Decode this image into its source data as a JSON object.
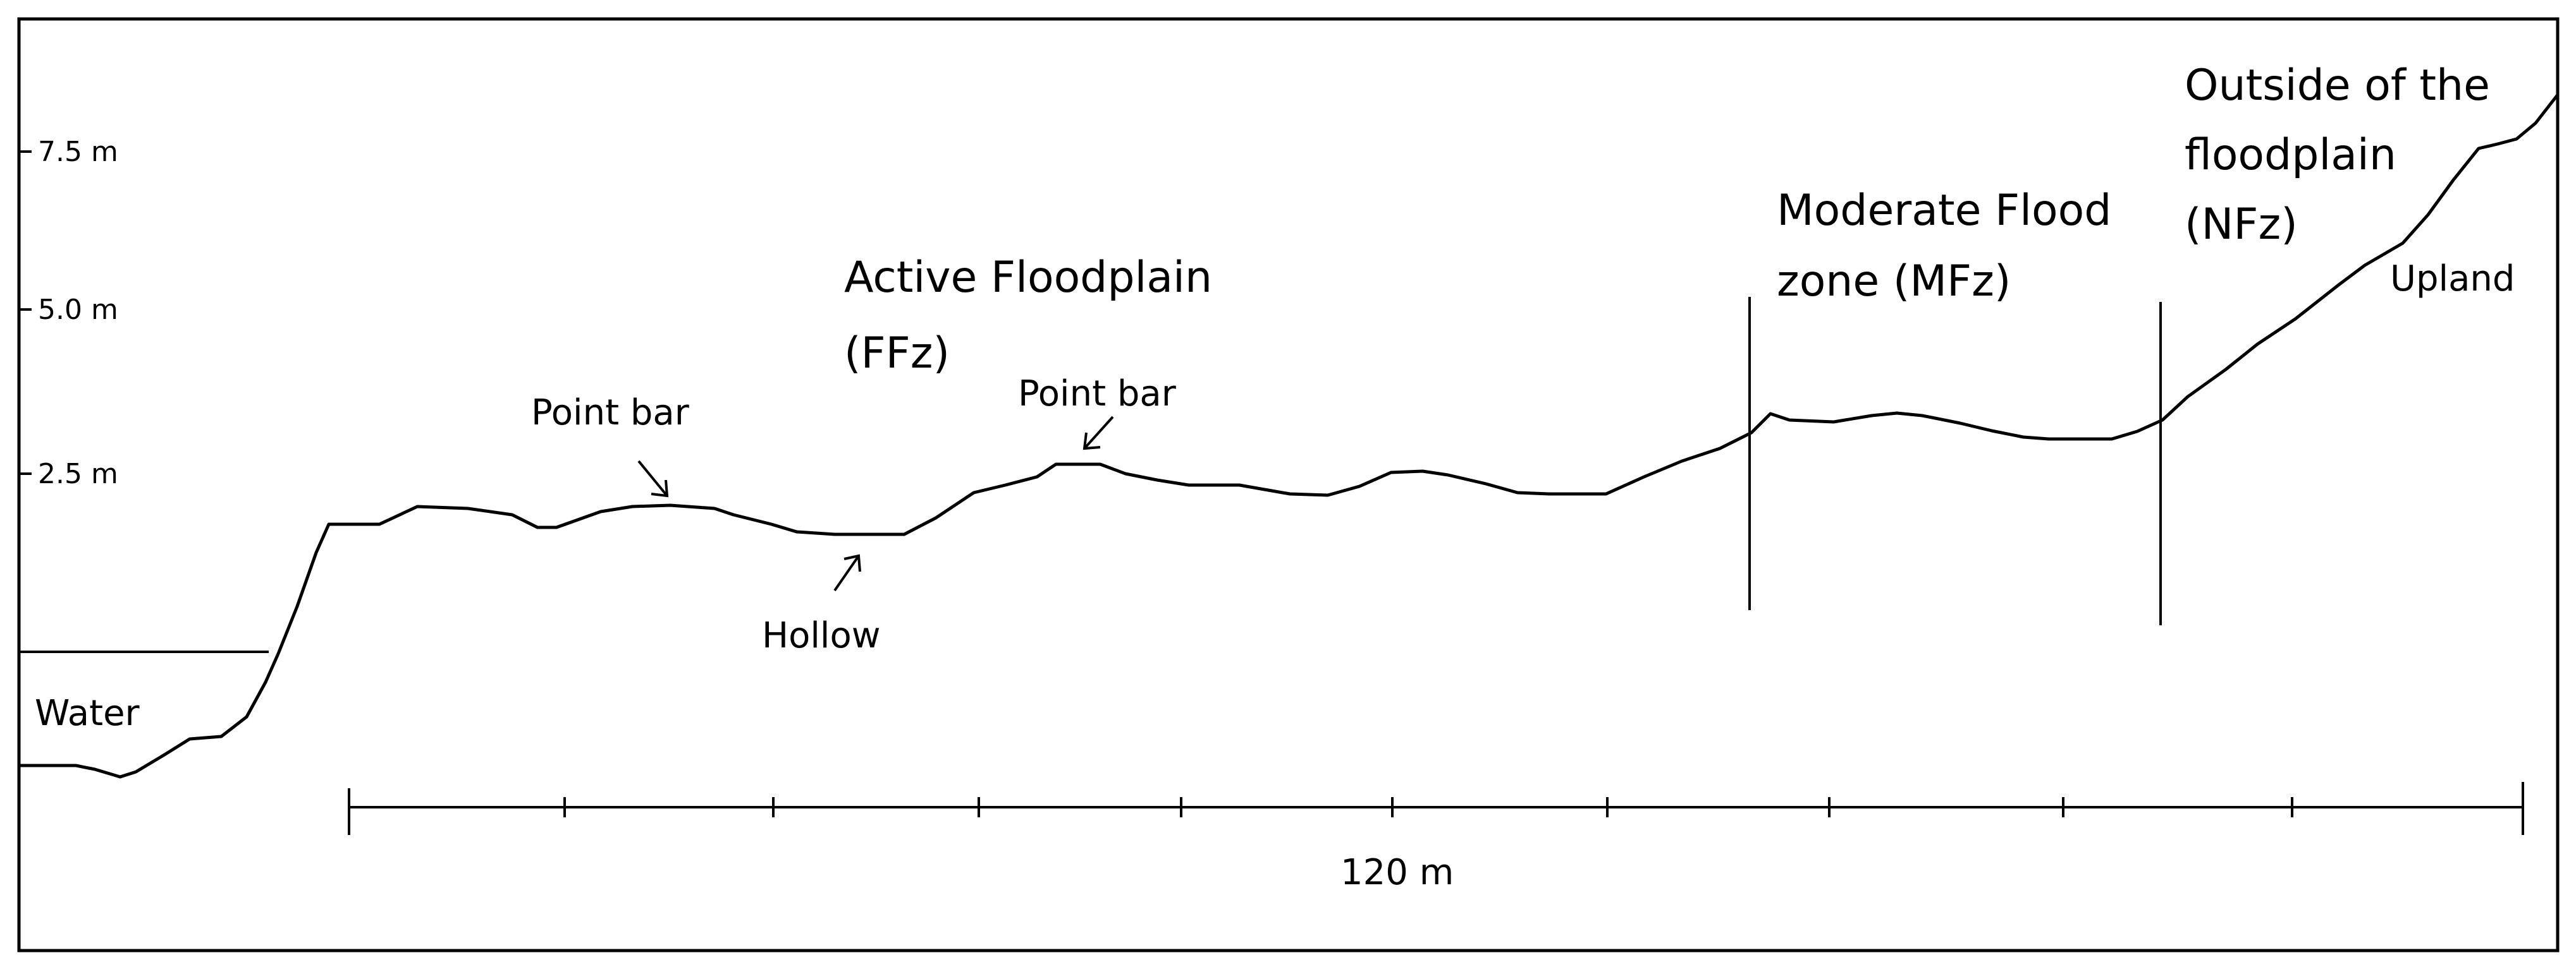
{
  "diagram": {
    "y_axis_ticks": [
      "7.5 m",
      "5.0 m",
      "2.5 m"
    ],
    "zones": {
      "active": [
        "Active Floodplain",
        "(FFz)"
      ],
      "moderate": [
        "Moderate Flood",
        "zone (MFz)"
      ],
      "outside": [
        "Outside of the",
        "floodplain",
        "(NFz)"
      ]
    },
    "features": {
      "point_bar_1": "Point bar",
      "point_bar_2": "Point bar",
      "hollow": "Hollow",
      "water": "Water",
      "upland": "Upland"
    },
    "scale_bar": {
      "label": "120 m"
    },
    "colors": {
      "line": "#000000",
      "background": "#ffffff"
    }
  }
}
